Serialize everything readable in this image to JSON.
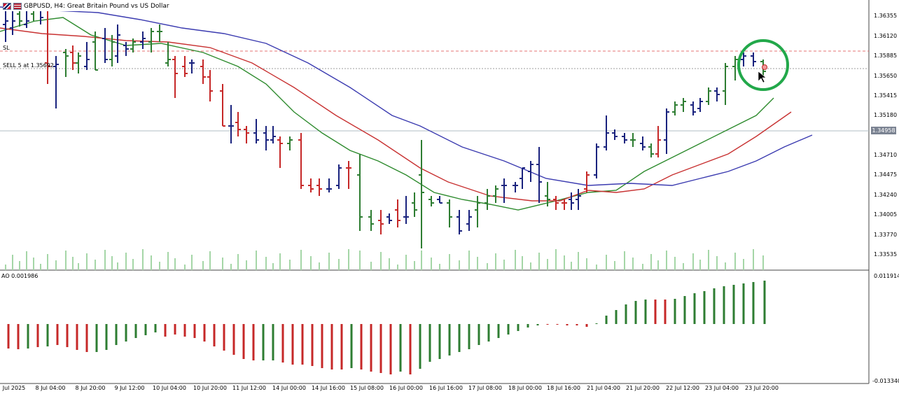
{
  "symbol": {
    "title": "GBPUSD, H4:  Great Britain Pound vs US Dollar",
    "icons": [
      "gbp-flag-icon",
      "usd-flag-icon"
    ]
  },
  "lines": {
    "sl_label": "SL",
    "sell_label": "SELL 5 at 1.35692",
    "current_price": "1.34958"
  },
  "price_axis": [
    "1.36355",
    "1.36120",
    "1.35885",
    "1.35650",
    "1.35415",
    "1.35180",
    "1.34710",
    "1.34475",
    "1.34240",
    "1.34005",
    "1.33770",
    "1.33535"
  ],
  "ao_panel": {
    "label": "AO 0.001986",
    "max_label": "0.011914",
    "min_label": "-0.013340"
  },
  "time_axis": [
    "Jul 2025",
    "8 Jul 04:00",
    "8 Jul 20:00",
    "9 Jul 12:00",
    "10 Jul 04:00",
    "10 Jul 20:00",
    "11 Jul 12:00",
    "14 Jul 00:00",
    "14 Jul 16:00",
    "15 Jul 08:00",
    "16 Jul 00:00",
    "16 Jul 16:00",
    "17 Jul 08:00",
    "18 Jul 00:00",
    "18 Jul 16:00",
    "21 Jul 04:00",
    "21 Jul 20:00",
    "22 Jul 12:00",
    "23 Jul 04:00",
    "23 Jul 20:00"
  ],
  "colors": {
    "bull_bar": "#2e7d32",
    "bear_bar": "#c62828",
    "neutral_bar": "#1a237e",
    "ma_fast": "#2e8b2e",
    "ma_mid": "#c83232",
    "ma_slow": "#3b3bb0",
    "volume": "#a5d6a7",
    "highlight_circle": "#22a84a"
  }
}
